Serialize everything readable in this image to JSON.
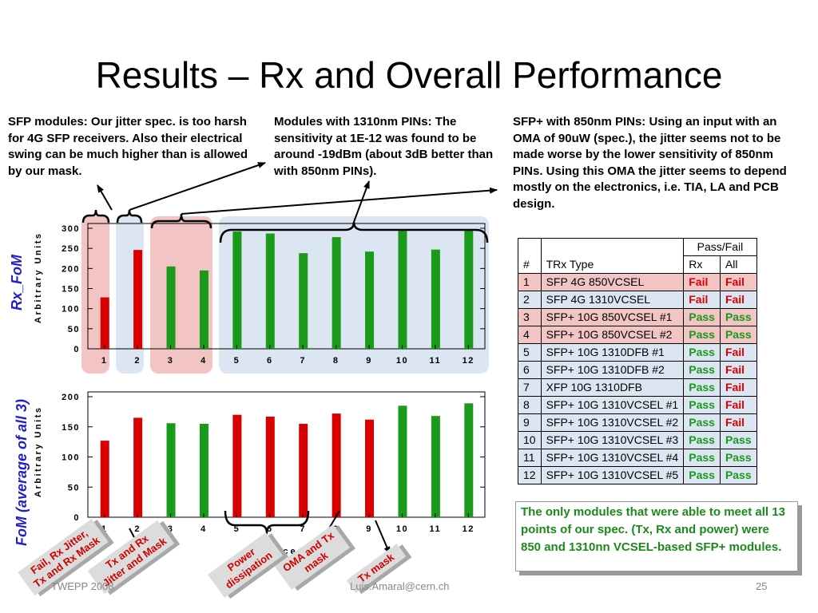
{
  "title": "Results – Rx and Overall Performance",
  "notes": {
    "left": "SFP modules: Our jitter spec. is too harsh for 4G SFP receivers. Also their electrical swing can be much higher than is allowed by our mask.",
    "middle": "Modules with 1310nm PINs: The sensitivity at 1E-12 was found to be around -19dBm (about 3dB better than with 850nm PINs).",
    "right": "SFP+ with 850nm PINs: Using an input with an OMA of 90uW (spec.), the jitter seems not to be made worse by the lower sensitivity of 850nm PINs. Using this OMA the jitter seems to depend mostly on the electronics, i.e. TIA, LA and PCB design."
  },
  "colors": {
    "pass": "#1a9a1a",
    "fail": "#dd0000",
    "red_shade": "#f2c4c4",
    "blue_shade": "#dce5f2"
  },
  "chart_data": [
    {
      "type": "bar",
      "title": "Rx_FoM",
      "ylabel": "Arbitrary Units",
      "categories": [
        "1",
        "2",
        "3",
        "4",
        "5",
        "6",
        "7",
        "8",
        "9",
        "10",
        "11",
        "12"
      ],
      "values": [
        128,
        246,
        205,
        195,
        292,
        287,
        238,
        278,
        242,
        296,
        247,
        298
      ],
      "bar_colors": [
        "#d80000",
        "#d80000",
        "#1a9a1a",
        "#1a9a1a",
        "#1a9a1a",
        "#1a9a1a",
        "#1a9a1a",
        "#1a9a1a",
        "#1a9a1a",
        "#1a9a1a",
        "#1a9a1a",
        "#1a9a1a"
      ],
      "ylim": [
        0,
        300
      ],
      "yticks": [
        "0",
        "50",
        "100",
        "150",
        "200",
        "250",
        "300"
      ]
    },
    {
      "type": "bar",
      "title": "FoM (average of all 3)",
      "ylabel": "Arbitrary Units",
      "xlabel": "Device #",
      "categories": [
        "1",
        "2",
        "3",
        "4",
        "5",
        "6",
        "7",
        "8",
        "9",
        "10",
        "11",
        "12"
      ],
      "values": [
        127,
        165,
        156,
        155,
        170,
        167,
        155,
        172,
        162,
        185,
        168,
        189
      ],
      "bar_colors": [
        "#d80000",
        "#d80000",
        "#1a9a1a",
        "#1a9a1a",
        "#d80000",
        "#d80000",
        "#d80000",
        "#d80000",
        "#d80000",
        "#1a9a1a",
        "#1a9a1a",
        "#1a9a1a"
      ],
      "ylim": [
        0,
        200
      ],
      "yticks": [
        "0",
        "50",
        "100",
        "150",
        "200"
      ]
    }
  ],
  "table": {
    "header_top": "Pass/Fail",
    "header": [
      "#",
      "TRx Type",
      "Rx",
      "All"
    ],
    "rows": [
      {
        "n": "1",
        "type": "SFP 4G 850VCSEL",
        "rx": "Fail",
        "all": "Fail",
        "shade": "red"
      },
      {
        "n": "2",
        "type": "SFP 4G 1310VCSEL",
        "rx": "Fail",
        "all": "Fail",
        "shade": "blue"
      },
      {
        "n": "3",
        "type": "SFP+ 10G 850VCSEL #1",
        "rx": "Pass",
        "all": "Pass",
        "shade": "red"
      },
      {
        "n": "4",
        "type": "SFP+ 10G 850VCSEL #2",
        "rx": "Pass",
        "all": "Pass",
        "shade": "red"
      },
      {
        "n": "5",
        "type": "SFP+ 10G 1310DFB #1",
        "rx": "Pass",
        "all": "Fail",
        "shade": "blue"
      },
      {
        "n": "6",
        "type": "SFP+ 10G 1310DFB #2",
        "rx": "Pass",
        "all": "Fail",
        "shade": "blue"
      },
      {
        "n": "7",
        "type": "XFP 10G 1310DFB",
        "rx": "Pass",
        "all": "Fail",
        "shade": "blue"
      },
      {
        "n": "8",
        "type": "SFP+ 10G 1310VCSEL #1",
        "rx": "Pass",
        "all": "Fail",
        "shade": "blue"
      },
      {
        "n": "9",
        "type": "SFP+ 10G 1310VCSEL #2",
        "rx": "Pass",
        "all": "Fail",
        "shade": "blue"
      },
      {
        "n": "10",
        "type": "SFP+ 10G 1310VCSEL #3",
        "rx": "Pass",
        "all": "Pass",
        "shade": "blue"
      },
      {
        "n": "11",
        "type": "SFP+ 10G 1310VCSEL #4",
        "rx": "Pass",
        "all": "Pass",
        "shade": "blue"
      },
      {
        "n": "12",
        "type": "SFP+ 10G 1310VCSEL #5",
        "rx": "Pass",
        "all": "Pass",
        "shade": "blue"
      }
    ]
  },
  "summary": "The only modules that were able to meet all 13 points of our spec. (Tx, Rx and power) were 850 and 1310nn VCSEL-based SFP+ modules.",
  "stamps": {
    "a": "Fail, Rx Jitter, Tx and Rx Mask",
    "b": "Tx and Rx Jitter and Mask",
    "c": "Power dissipation",
    "d": "OMA and Tx mask",
    "e": "Tx mask"
  },
  "footer": {
    "left": "TWEPP 2008",
    "center": "Luis.Amaral@cern.ch",
    "right": "25"
  }
}
